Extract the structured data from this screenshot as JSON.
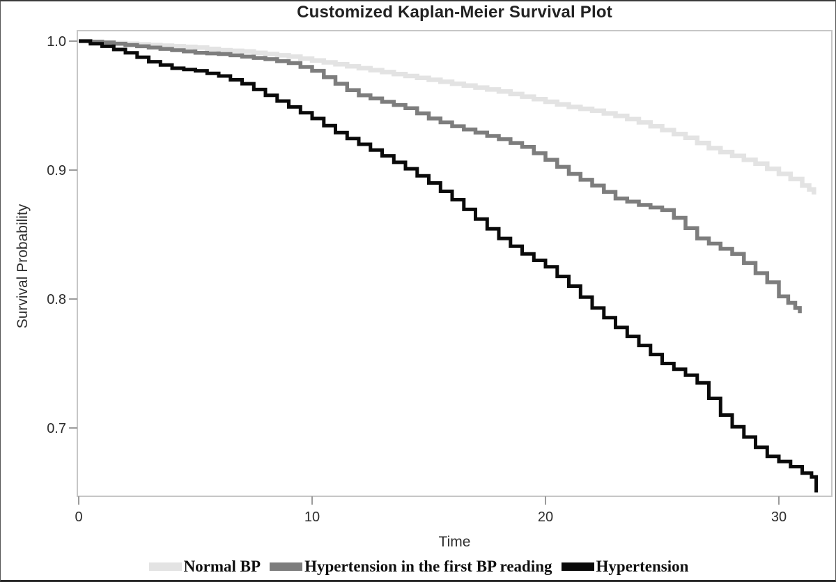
{
  "chart_data": {
    "type": "line",
    "subtype": "kaplan-meier-step",
    "title": "Customized Kaplan-Meier Survival Plot",
    "xlabel": "Time",
    "ylabel": "Survival Probability",
    "xlim": [
      0,
      32.3
    ],
    "ylim": [
      0.648,
      1.008
    ],
    "grid": false,
    "legend_position": "bottom",
    "xticks": [
      0,
      10,
      20,
      30
    ],
    "yticks": [
      1.0,
      0.9,
      0.8,
      0.7
    ],
    "xtick_labels": [
      "0",
      "10",
      "20",
      "30"
    ],
    "ytick_labels": [
      "1.0",
      "0.9",
      "0.8",
      "0.7"
    ],
    "frame_color": "#c6c6c6",
    "tick_color": "#9b9b9b",
    "series": [
      {
        "name": "Normal BP",
        "color": "#e3e3e3",
        "stroke_width": 6.5,
        "points": [
          [
            0,
            1.0
          ],
          [
            1,
            0.999
          ],
          [
            2,
            0.998
          ],
          [
            3,
            0.997
          ],
          [
            4,
            0.996
          ],
          [
            5,
            0.995
          ],
          [
            6,
            0.993
          ],
          [
            7,
            0.992
          ],
          [
            8,
            0.99
          ],
          [
            9,
            0.988
          ],
          [
            10,
            0.985
          ],
          [
            11,
            0.982
          ],
          [
            12,
            0.979
          ],
          [
            13,
            0.976
          ],
          [
            14,
            0.973
          ],
          [
            15,
            0.97
          ],
          [
            16,
            0.967
          ],
          [
            17,
            0.964
          ],
          [
            18,
            0.961
          ],
          [
            19,
            0.957
          ],
          [
            20,
            0.953
          ],
          [
            21,
            0.949
          ],
          [
            22,
            0.946
          ],
          [
            23,
            0.942
          ],
          [
            24,
            0.937
          ],
          [
            25,
            0.931
          ],
          [
            26,
            0.925
          ],
          [
            27,
            0.917
          ],
          [
            28,
            0.911
          ],
          [
            29,
            0.905
          ],
          [
            30,
            0.897
          ],
          [
            30.5,
            0.893
          ],
          [
            31,
            0.888
          ],
          [
            31.3,
            0.885
          ],
          [
            31.5,
            0.881
          ]
        ]
      },
      {
        "name": "Hypertension in the first BP reading",
        "color": "#7d7d7d",
        "stroke_width": 5.5,
        "points": [
          [
            0,
            1.0
          ],
          [
            1,
            0.999
          ],
          [
            2,
            0.997
          ],
          [
            3,
            0.995
          ],
          [
            4,
            0.993
          ],
          [
            5,
            0.991
          ],
          [
            6,
            0.99
          ],
          [
            7,
            0.988
          ],
          [
            8,
            0.986
          ],
          [
            9,
            0.983
          ],
          [
            9.5,
            0.98
          ],
          [
            10,
            0.977
          ],
          [
            10.5,
            0.972
          ],
          [
            11,
            0.967
          ],
          [
            11.5,
            0.962
          ],
          [
            12,
            0.958
          ],
          [
            13,
            0.953
          ],
          [
            14,
            0.948
          ],
          [
            15,
            0.94
          ],
          [
            16,
            0.934
          ],
          [
            17,
            0.929
          ],
          [
            18,
            0.924
          ],
          [
            19,
            0.918
          ],
          [
            20,
            0.908
          ],
          [
            21,
            0.897
          ],
          [
            22,
            0.888
          ],
          [
            23,
            0.878
          ],
          [
            24,
            0.873
          ],
          [
            25,
            0.869
          ],
          [
            25.5,
            0.863
          ],
          [
            26,
            0.855
          ],
          [
            26.5,
            0.847
          ],
          [
            27,
            0.843
          ],
          [
            28,
            0.835
          ],
          [
            28.5,
            0.828
          ],
          [
            29,
            0.82
          ],
          [
            29.5,
            0.813
          ],
          [
            30,
            0.802
          ],
          [
            30.4,
            0.797
          ],
          [
            30.7,
            0.793
          ],
          [
            30.9,
            0.789
          ]
        ]
      },
      {
        "name": "Hypertension",
        "color": "#0a0a0a",
        "stroke_width": 5,
        "points": [
          [
            0,
            1.0
          ],
          [
            0.5,
            0.998
          ],
          [
            1,
            0.996
          ],
          [
            2,
            0.991
          ],
          [
            3,
            0.984
          ],
          [
            4,
            0.979
          ],
          [
            5,
            0.977
          ],
          [
            6,
            0.973
          ],
          [
            7,
            0.967
          ],
          [
            8,
            0.958
          ],
          [
            9,
            0.949
          ],
          [
            10,
            0.94
          ],
          [
            11,
            0.929
          ],
          [
            12,
            0.92
          ],
          [
            13,
            0.911
          ],
          [
            14,
            0.901
          ],
          [
            15,
            0.89
          ],
          [
            16,
            0.877
          ],
          [
            17,
            0.862
          ],
          [
            18,
            0.847
          ],
          [
            19,
            0.835
          ],
          [
            20,
            0.825
          ],
          [
            21,
            0.81
          ],
          [
            22,
            0.793
          ],
          [
            23,
            0.778
          ],
          [
            24,
            0.764
          ],
          [
            25,
            0.75
          ],
          [
            26,
            0.741
          ],
          [
            26.5,
            0.735
          ],
          [
            27,
            0.723
          ],
          [
            27.5,
            0.71
          ],
          [
            28,
            0.701
          ],
          [
            28.5,
            0.693
          ],
          [
            29,
            0.685
          ],
          [
            29.5,
            0.678
          ],
          [
            30,
            0.674
          ],
          [
            30.5,
            0.67
          ],
          [
            31,
            0.665
          ],
          [
            31.4,
            0.662
          ],
          [
            31.6,
            0.65
          ]
        ]
      }
    ]
  }
}
